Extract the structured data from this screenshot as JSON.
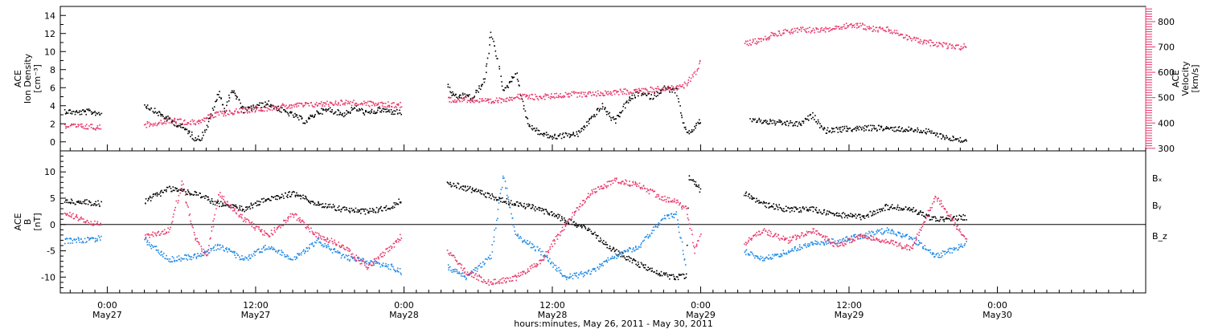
{
  "figure": {
    "xlabel": "hours:minutes, May 26, 2011 - May 30, 2011"
  },
  "colors": {
    "black": "#000000",
    "pink": "#e8376a",
    "blue": "#1e88e5"
  },
  "x_axis": {
    "range_hours": [
      -3.8,
      84.0
    ],
    "ticks": [
      {
        "h": 0,
        "time": "0:00",
        "day": "May27"
      },
      {
        "h": 12,
        "time": "12:00",
        "day": "May27"
      },
      {
        "h": 24,
        "time": "0:00",
        "day": "May28"
      },
      {
        "h": 36,
        "time": "12:00",
        "day": "May28"
      },
      {
        "h": 48,
        "time": "0:00",
        "day": "May29"
      },
      {
        "h": 60,
        "time": "12:00",
        "day": "May29"
      },
      {
        "h": 72,
        "time": "0:00",
        "day": "May30"
      }
    ]
  },
  "chart_data": [
    {
      "type": "scatter",
      "panel": "top",
      "ylabel_left": [
        "ACE",
        "Ion Density",
        "[cm⁻³]"
      ],
      "ylabel_right": [
        "ACE",
        "Velocity",
        "[km/s]"
      ],
      "ylim": [
        -1,
        15
      ],
      "ylim_right": [
        290,
        860
      ],
      "yticks": [
        0,
        2,
        4,
        6,
        8,
        10,
        12,
        14
      ],
      "yticks_right": [
        300,
        400,
        500,
        600,
        700,
        800
      ],
      "series": [
        {
          "color": "black",
          "axis": "left",
          "points": [
            [
              -3.5,
              3.5
            ],
            [
              -2.5,
              3.3
            ],
            [
              -1.5,
              3.4
            ],
            [
              -0.5,
              3.2
            ],
            [
              3,
              4.2
            ],
            [
              4,
              3.3
            ],
            [
              5,
              2.5
            ],
            [
              6,
              1.7
            ],
            [
              6.5,
              1.2
            ],
            [
              7,
              0.5
            ],
            [
              7.5,
              0.4
            ],
            [
              8,
              1.7
            ],
            [
              8.5,
              3.5
            ],
            [
              9,
              5.6
            ],
            [
              9.5,
              3.3
            ],
            [
              10,
              5.9
            ],
            [
              10.5,
              4.8
            ],
            [
              11,
              3.5
            ],
            [
              12,
              4.0
            ],
            [
              13,
              4.3
            ],
            [
              14,
              3.6
            ],
            [
              15,
              3.0
            ],
            [
              16,
              2.3
            ],
            [
              17,
              3.4
            ],
            [
              18,
              3.6
            ],
            [
              19,
              3.1
            ],
            [
              20,
              3.8
            ],
            [
              21,
              3.2
            ],
            [
              22,
              3.6
            ],
            [
              23,
              3.4
            ],
            [
              23.8,
              3.3
            ],
            [
              27.5,
              6.2
            ],
            [
              28,
              5.0
            ],
            [
              29,
              5.2
            ],
            [
              29.5,
              4.8
            ],
            [
              30.5,
              7.0
            ],
            [
              31,
              12.0
            ],
            [
              31.5,
              9.5
            ],
            [
              32,
              5.5
            ],
            [
              33,
              7.8
            ],
            [
              34,
              2.0
            ],
            [
              35,
              1.0
            ],
            [
              36,
              0.6
            ],
            [
              37,
              0.8
            ],
            [
              38,
              0.9
            ],
            [
              39,
              2.5
            ],
            [
              40,
              4.0
            ],
            [
              41,
              2.3
            ],
            [
              42,
              4.5
            ],
            [
              43,
              5.5
            ],
            [
              44,
              5.0
            ],
            [
              45,
              6.0
            ],
            [
              46,
              5.7
            ],
            [
              46.5,
              2.0
            ],
            [
              47,
              1.0
            ],
            [
              48,
              2.5
            ],
            [
              52,
              2.5
            ],
            [
              54,
              2.2
            ],
            [
              56,
              2.0
            ],
            [
              57,
              3.0
            ],
            [
              58,
              1.3
            ],
            [
              60,
              1.5
            ],
            [
              62,
              1.6
            ],
            [
              64,
              1.5
            ],
            [
              66,
              1.3
            ],
            [
              68,
              0.5
            ],
            [
              69.5,
              0.2
            ]
          ]
        },
        {
          "color": "pink",
          "axis": "right",
          "points": [
            [
              -3.5,
              390
            ],
            [
              -2,
              388
            ],
            [
              -0.5,
              385
            ],
            [
              3,
              395
            ],
            [
              5,
              413
            ],
            [
              7,
              404
            ],
            [
              9,
              438
            ],
            [
              11,
              452
            ],
            [
              13,
              462
            ],
            [
              15,
              471
            ],
            [
              17,
              476
            ],
            [
              19,
              484
            ],
            [
              21,
              478
            ],
            [
              23,
              474
            ],
            [
              23.8,
              472
            ],
            [
              27.5,
              495
            ],
            [
              29,
              495
            ],
            [
              31,
              485
            ],
            [
              33,
              506
            ],
            [
              35,
              504
            ],
            [
              37,
              514
            ],
            [
              39,
              517
            ],
            [
              41,
              523
            ],
            [
              43,
              530
            ],
            [
              45,
              538
            ],
            [
              46.5,
              543
            ],
            [
              47.5,
              598
            ],
            [
              48,
              651
            ],
            [
              51.5,
              716
            ],
            [
              53,
              731
            ],
            [
              54,
              756
            ],
            [
              56,
              770
            ],
            [
              58,
              768
            ],
            [
              59,
              780
            ],
            [
              60,
              790
            ],
            [
              61,
              785
            ],
            [
              62,
              772
            ],
            [
              63,
              771
            ],
            [
              64,
              755
            ],
            [
              65,
              734
            ],
            [
              66,
              722
            ],
            [
              67,
              715
            ],
            [
              68,
              705
            ],
            [
              69,
              701
            ],
            [
              69.5,
              709
            ]
          ]
        }
      ]
    },
    {
      "type": "scatter",
      "panel": "bottom",
      "ylabel_left": [
        "ACE",
        "B",
        "[nT]"
      ],
      "ylim": [
        -13,
        14
      ],
      "yticks": [
        -10,
        -5,
        0,
        5,
        10
      ],
      "zero_line": true,
      "legend": [
        "Bₓ",
        "Bᵧ",
        "B_z"
      ],
      "legend_placement": "right",
      "series": [
        {
          "color": "black",
          "name": "Bₓ",
          "points": [
            [
              -3.5,
              4.5
            ],
            [
              -1.5,
              4.3
            ],
            [
              -0.5,
              4.0
            ],
            [
              3,
              4.5
            ],
            [
              5,
              7.0
            ],
            [
              7,
              6.0
            ],
            [
              9,
              4.0
            ],
            [
              11,
              3.0
            ],
            [
              13,
              5.0
            ],
            [
              15,
              6.0
            ],
            [
              17,
              4.0
            ],
            [
              19,
              3.0
            ],
            [
              21,
              2.5
            ],
            [
              23,
              3.5
            ],
            [
              23.8,
              5.0
            ],
            [
              27.5,
              8.0
            ],
            [
              29,
              7.0
            ],
            [
              31,
              5.5
            ],
            [
              33,
              4.0
            ],
            [
              35,
              3.0
            ],
            [
              37,
              1.0
            ],
            [
              39,
              -1.0
            ],
            [
              41,
              -5.0
            ],
            [
              43,
              -7.5
            ],
            [
              45,
              -9.5
            ],
            [
              46,
              -10.0
            ],
            [
              46.8,
              -9.5
            ],
            [
              47,
              9.0
            ],
            [
              48,
              6.5
            ],
            [
              51.5,
              6.0
            ],
            [
              53,
              4.0
            ],
            [
              55,
              3.0
            ],
            [
              57,
              3.0
            ],
            [
              59,
              2.0
            ],
            [
              61,
              1.5
            ],
            [
              63,
              3.5
            ],
            [
              65,
              3.0
            ],
            [
              67,
              1.0
            ],
            [
              69.5,
              1.5
            ]
          ]
        },
        {
          "color": "blue",
          "name": "Bᵧ",
          "points": [
            [
              -3.5,
              -3.0
            ],
            [
              -1.5,
              -2.8
            ],
            [
              -0.5,
              -2.5
            ],
            [
              3,
              -3.0
            ],
            [
              5,
              -6.5
            ],
            [
              7,
              -6.0
            ],
            [
              9,
              -4.0
            ],
            [
              11,
              -6.5
            ],
            [
              13,
              -4.0
            ],
            [
              15,
              -6.5
            ],
            [
              17,
              -3.0
            ],
            [
              19,
              -6.0
            ],
            [
              21,
              -7.0
            ],
            [
              23,
              -8.0
            ],
            [
              23.8,
              -9.0
            ],
            [
              27.5,
              -8.0
            ],
            [
              29,
              -10.0
            ],
            [
              31,
              -6.0
            ],
            [
              32,
              9.5
            ],
            [
              33,
              -2.0
            ],
            [
              35,
              -5.0
            ],
            [
              37,
              -10.0
            ],
            [
              39,
              -9.0
            ],
            [
              41,
              -6.0
            ],
            [
              43,
              -4.0
            ],
            [
              45,
              1.5
            ],
            [
              46,
              2.0
            ],
            [
              46.8,
              -8.5
            ],
            [
              51.5,
              -5.0
            ],
            [
              53,
              -6.5
            ],
            [
              55,
              -5.0
            ],
            [
              57,
              -3.5
            ],
            [
              59,
              -3.0
            ],
            [
              61,
              -2.0
            ],
            [
              63,
              -1.0
            ],
            [
              65,
              -2.5
            ],
            [
              67,
              -6.0
            ],
            [
              69.5,
              -3.5
            ]
          ]
        },
        {
          "color": "pink",
          "name": "B_z",
          "points": [
            [
              -3.5,
              2.5
            ],
            [
              -2,
              1.0
            ],
            [
              -0.5,
              0.0
            ],
            [
              3,
              -2.0
            ],
            [
              5,
              -1.0
            ],
            [
              6,
              8.0
            ],
            [
              7,
              -2.0
            ],
            [
              8,
              -6.0
            ],
            [
              9,
              6.0
            ],
            [
              11,
              1.0
            ],
            [
              13,
              -2.0
            ],
            [
              15,
              2.0
            ],
            [
              17,
              -2.0
            ],
            [
              19,
              -4.0
            ],
            [
              21,
              -8.0
            ],
            [
              23,
              -4.0
            ],
            [
              23.8,
              -2.0
            ],
            [
              27.5,
              -5.0
            ],
            [
              29,
              -9.0
            ],
            [
              31,
              -11.0
            ],
            [
              33,
              -10.0
            ],
            [
              35,
              -7.0
            ],
            [
              37,
              0.0
            ],
            [
              39,
              6.0
            ],
            [
              41,
              8.5
            ],
            [
              43,
              7.5
            ],
            [
              45,
              5.0
            ],
            [
              46,
              4.5
            ],
            [
              46.8,
              3.0
            ],
            [
              47.5,
              -5.0
            ],
            [
              48,
              -1.0
            ],
            [
              51.5,
              -3.5
            ],
            [
              53,
              -1.0
            ],
            [
              55,
              -3.0
            ],
            [
              57,
              -1.0
            ],
            [
              59,
              -4.0
            ],
            [
              61,
              -2.0
            ],
            [
              63,
              -3.0
            ],
            [
              65,
              -4.5
            ],
            [
              67,
              5.5
            ],
            [
              69.5,
              -3.0
            ]
          ]
        }
      ]
    }
  ]
}
